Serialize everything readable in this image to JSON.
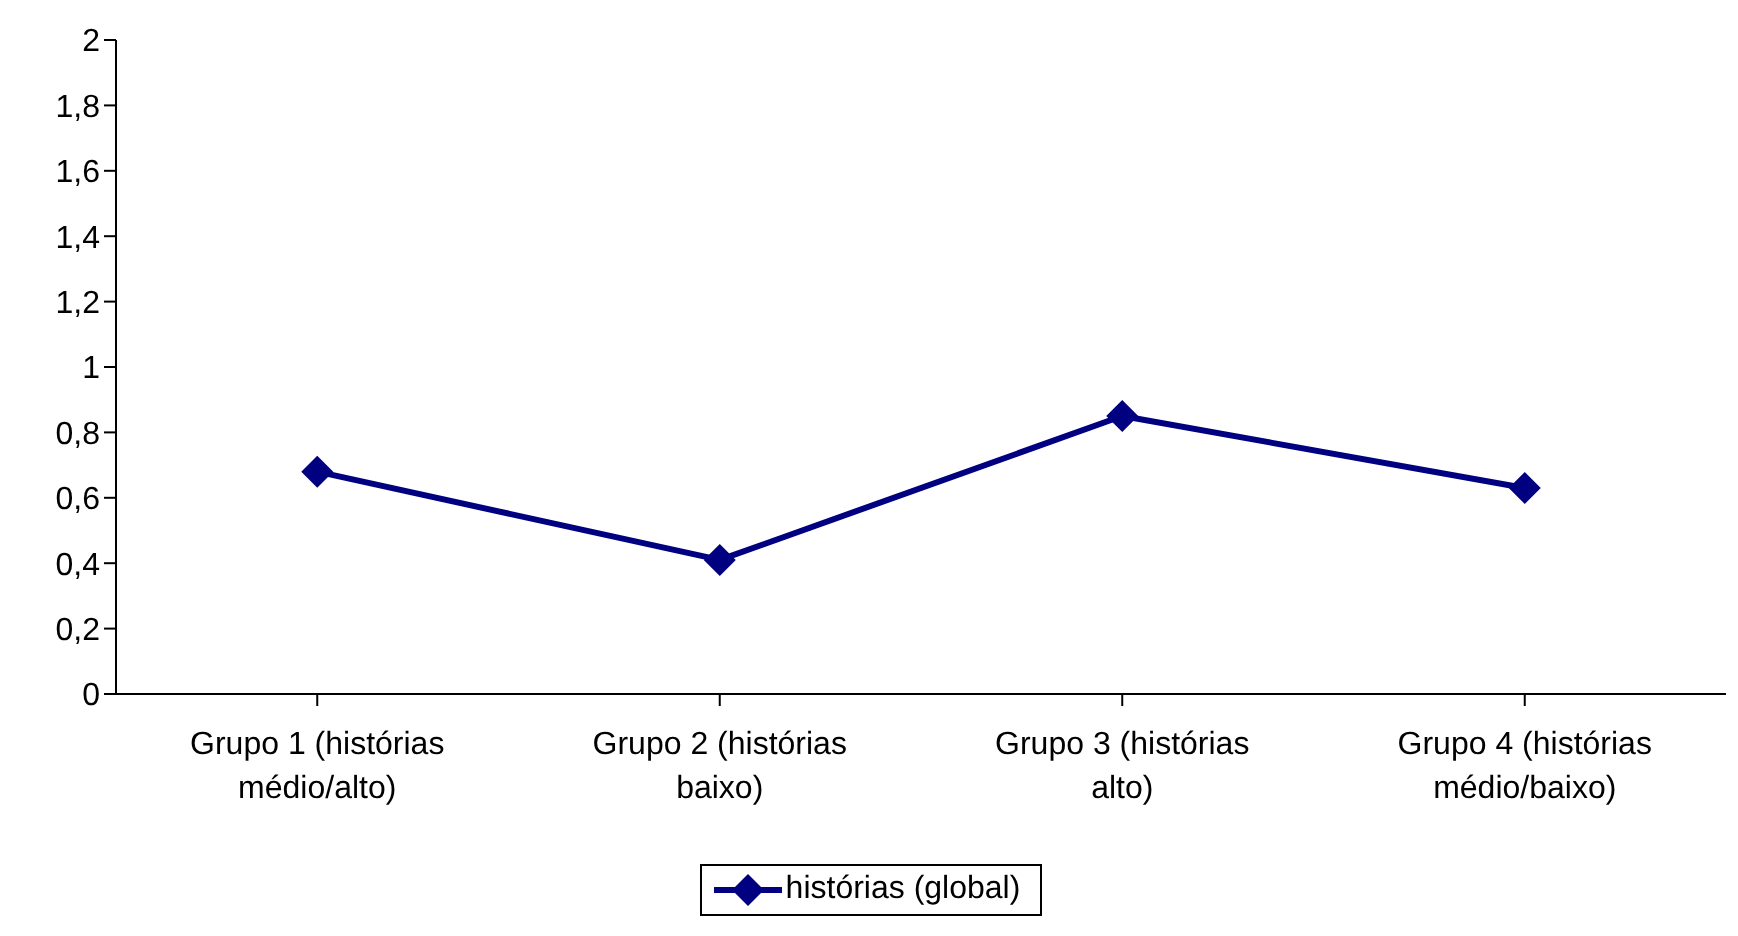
{
  "chart_data": {
    "type": "line",
    "categories": [
      "Grupo 1 (histórias médio/alto)",
      "Grupo 2 (histórias baixo)",
      "Grupo 3 (histórias alto)",
      "Grupo 4 (histórias médio/baixo)"
    ],
    "series": [
      {
        "name": "histórias (global)",
        "color": "#000080",
        "values": [
          0.68,
          0.41,
          0.85,
          0.63
        ]
      }
    ],
    "ylim": [
      0,
      2
    ],
    "yticks": [
      0,
      {
        "value": 0.2,
        "label": "0,2"
      },
      {
        "value": 0.4,
        "label": "0,4"
      },
      {
        "value": 0.6,
        "label": "0,6"
      },
      {
        "value": 0.8,
        "label": "0,8"
      },
      1,
      {
        "value": 1.2,
        "label": "1,2"
      },
      {
        "value": 1.4,
        "label": "1,4"
      },
      {
        "value": 1.6,
        "label": "1,6"
      },
      {
        "value": 1.8,
        "label": "1,8"
      },
      2
    ],
    "grid": false,
    "legend": "bottom",
    "marker": "diamond",
    "line_style": "solid"
  }
}
